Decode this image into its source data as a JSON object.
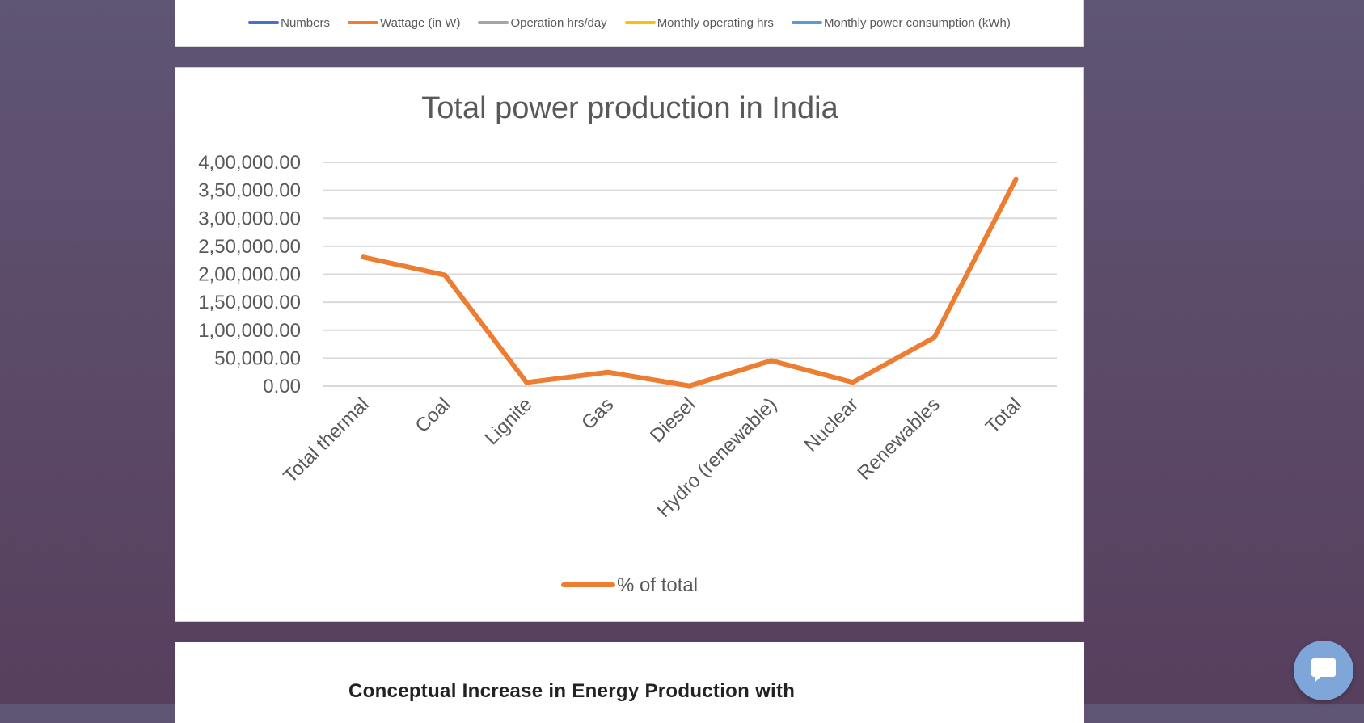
{
  "top_card": {
    "legend": [
      {
        "label": "Numbers",
        "color": "#4472c4"
      },
      {
        "label": "Wattage (in W)",
        "color": "#ed7d31"
      },
      {
        "label": "Operation hrs/day",
        "color": "#a5a5a5"
      },
      {
        "label": "Monthly operating hrs",
        "color": "#ffc000"
      },
      {
        "label": "Monthly power consumption (kWh)",
        "color": "#5b9bd5"
      }
    ]
  },
  "chart_data": {
    "type": "line",
    "title": "Total power production in India",
    "categories": [
      "Total thermal",
      "Coal",
      "Lignite",
      "Gas",
      "Diesel",
      "Hydro (renewable)",
      "Nuclear",
      "Renewables",
      "Total"
    ],
    "series": [
      {
        "name": "% of total",
        "color": "#ed7d31",
        "values": [
          230600,
          198500,
          6600,
          24900,
          510,
          45700,
          6780,
          87000,
          370100
        ]
      }
    ],
    "yticks": [
      "0.00",
      "50,000.00",
      "1,00,000.00",
      "1,50,000.00",
      "2,00,000.00",
      "2,50,000.00",
      "3,00,000.00",
      "3,50,000.00",
      "4,00,000.00"
    ],
    "ylim": [
      0,
      400000
    ],
    "grid": true,
    "legend_position": "bottom"
  },
  "bottom_card": {
    "heading": "Conceptual Increase in Energy Production with"
  },
  "chat": {
    "icon": "chat-bubble-icon"
  }
}
